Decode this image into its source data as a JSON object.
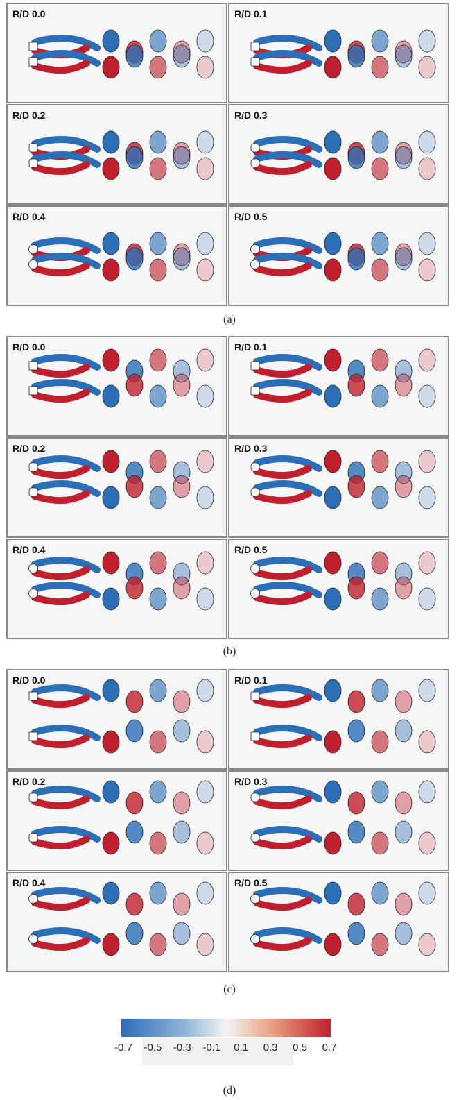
{
  "figure": {
    "groups": [
      {
        "panels": [
          "R/D 0.0",
          "R/D 0.1",
          "R/D 0.2",
          "R/D 0.3",
          "R/D 0.4",
          "R/D 0.5"
        ],
        "caption": "(a)"
      },
      {
        "panels": [
          "R/D 0.0",
          "R/D 0.1",
          "R/D 0.2",
          "R/D 0.3",
          "R/D 0.4",
          "R/D 0.5"
        ],
        "caption": "(b)"
      },
      {
        "panels": [
          "R/D 0.0",
          "R/D 0.1",
          "R/D 0.2",
          "R/D 0.3",
          "R/D 0.4",
          "R/D 0.5"
        ],
        "caption": "(c)"
      }
    ],
    "colorbar": {
      "ticks": [
        "-0.7",
        "-0.5",
        "-0.3",
        "-0.1",
        "0.1",
        "0.3",
        "0.5",
        "0.7"
      ],
      "caption": "(d)"
    }
  }
}
